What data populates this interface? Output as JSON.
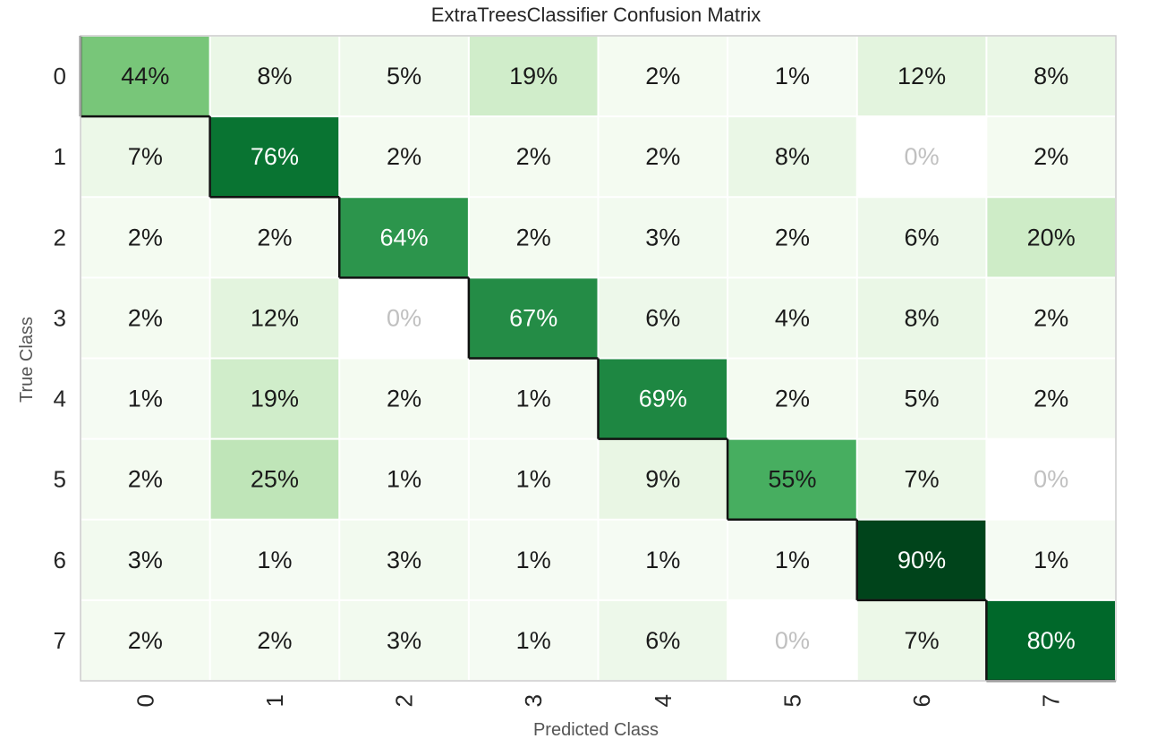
{
  "chart_data": {
    "type": "heatmap",
    "title": "ExtraTreesClassifier Confusion Matrix",
    "xlabel": "Predicted Class",
    "ylabel": "True Class",
    "x_categories": [
      "0",
      "1",
      "2",
      "3",
      "4",
      "5",
      "6",
      "7"
    ],
    "y_categories": [
      "0",
      "1",
      "2",
      "3",
      "4",
      "5",
      "6",
      "7"
    ],
    "values": [
      [
        44,
        8,
        5,
        19,
        2,
        1,
        12,
        8
      ],
      [
        7,
        76,
        2,
        2,
        2,
        8,
        0,
        2
      ],
      [
        2,
        2,
        64,
        2,
        3,
        2,
        6,
        20
      ],
      [
        2,
        12,
        0,
        67,
        6,
        4,
        8,
        2
      ],
      [
        1,
        19,
        2,
        1,
        69,
        2,
        5,
        2
      ],
      [
        2,
        25,
        1,
        1,
        9,
        55,
        7,
        0
      ],
      [
        3,
        1,
        3,
        1,
        1,
        1,
        90,
        1
      ],
      [
        2,
        2,
        3,
        1,
        6,
        0,
        7,
        80
      ]
    ],
    "value_suffix": "%",
    "colormap": "Greens",
    "color_scale": [
      "#f7fcf5",
      "#e5f5e0",
      "#c7e9c0",
      "#a1d99b",
      "#74c476",
      "#41ab5d",
      "#238b45",
      "#006d2c",
      "#00441b"
    ],
    "zero_cell_color": "#ffffff",
    "zero_text_color": "#c0c0c0",
    "diagonal_outline": true,
    "grid": true
  }
}
